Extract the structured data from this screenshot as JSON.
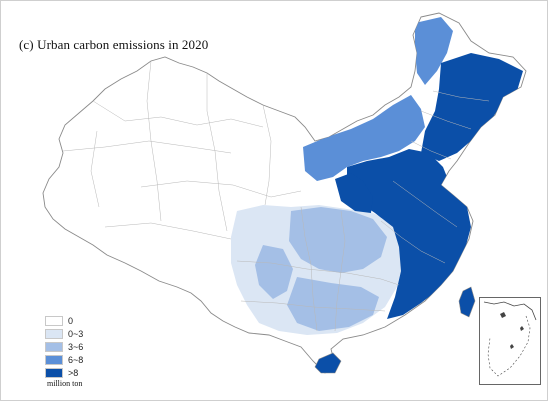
{
  "title": "(c) Urban carbon emissions in 2020",
  "legend": {
    "items": [
      {
        "label": "0",
        "color": "#ffffff"
      },
      {
        "label": "0~3",
        "color": "#dbe6f4"
      },
      {
        "label": "3~6",
        "color": "#a4bfe6"
      },
      {
        "label": "6~8",
        "color": "#5b8fd7"
      },
      {
        "label": ">8",
        "color": "#0b4fa8"
      }
    ]
  },
  "unit": "million ton",
  "palette": {
    "zero": "#ffffff",
    "low": "#dbe6f4",
    "midlow": "#a4bfe6",
    "midhigh": "#5b8fd7",
    "high": "#0b4fa8",
    "outline": "#b8b8b8"
  }
}
